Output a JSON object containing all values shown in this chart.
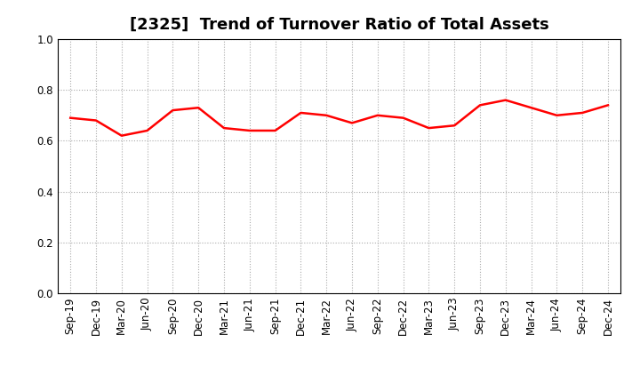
{
  "title": "[2325]  Trend of Turnover Ratio of Total Assets",
  "labels": [
    "Sep-19",
    "Dec-19",
    "Mar-20",
    "Jun-20",
    "Sep-20",
    "Dec-20",
    "Mar-21",
    "Jun-21",
    "Sep-21",
    "Dec-21",
    "Mar-22",
    "Jun-22",
    "Sep-22",
    "Dec-22",
    "Mar-23",
    "Jun-23",
    "Sep-23",
    "Dec-23",
    "Mar-24",
    "Jun-24",
    "Sep-24",
    "Dec-24"
  ],
  "values": [
    0.69,
    0.68,
    0.62,
    0.64,
    0.72,
    0.73,
    0.65,
    0.64,
    0.64,
    0.71,
    0.7,
    0.67,
    0.7,
    0.69,
    0.65,
    0.66,
    0.74,
    0.76,
    0.73,
    0.7,
    0.71,
    0.74
  ],
  "line_color": "#FF0000",
  "line_width": 1.8,
  "ylim": [
    0.0,
    1.0
  ],
  "yticks": [
    0.0,
    0.2,
    0.4,
    0.6,
    0.8,
    1.0
  ],
  "grid_color": "#aaaaaa",
  "background_color": "#ffffff",
  "title_fontsize": 13,
  "tick_fontsize": 8.5
}
